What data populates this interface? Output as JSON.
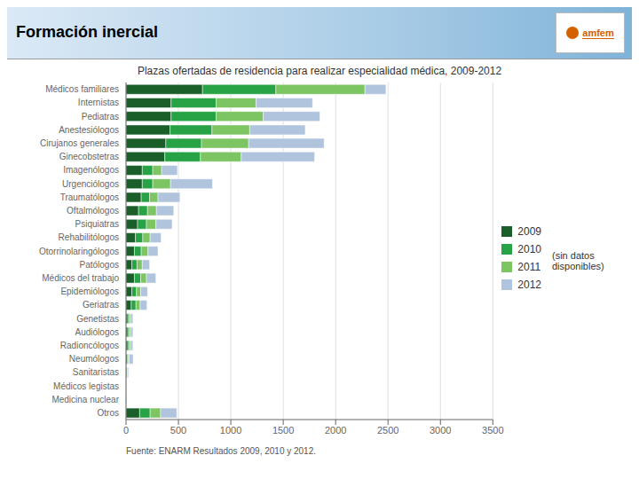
{
  "chart_data": {
    "type": "bar",
    "orientation": "horizontal",
    "stacked": true,
    "grid": true,
    "legend": "right",
    "title": "Plazas ofertadas de residencia para realizar especialidad médica, 2009-2012",
    "header": "Formación inercial",
    "logo": "amfem",
    "footer": "Fuente: ENARM Resultados 2009, 2010 y 2012.",
    "annotations": [
      "(sin datos disponibles)"
    ],
    "categories": [
      "Médicos familiares",
      "Internistas",
      "Pediatras",
      "Anestesiólogos",
      "Cirujanos generales",
      "Ginecobstetras",
      "Imagenólogos",
      "Urgenciólogos",
      "Traumatólogos",
      "Oftalmólogos",
      "Psiquiatras",
      "Rehabilitólogos",
      "Otorrinolaringólogos",
      "Patólogos",
      "Médicos del trabajo",
      "Epidemiólogos",
      "Geriatras",
      "Genetistas",
      "Audiólogos",
      "Radioncólogos",
      "Neumólogos",
      "Sanitaristas",
      "Médicos legistas",
      "Medicina nuclear",
      "Otros"
    ],
    "series": [
      {
        "name": "2009",
        "color": "#1a5e2a",
        "values": [
          730,
          430,
          430,
          420,
          380,
          370,
          155,
          155,
          145,
          120,
          110,
          90,
          80,
          55,
          80,
          55,
          50,
          18,
          18,
          18,
          12,
          8,
          0,
          0,
          130
        ]
      },
      {
        "name": "2010",
        "color": "#27a244",
        "values": [
          700,
          430,
          430,
          400,
          340,
          340,
          100,
          100,
          80,
          85,
          85,
          70,
          65,
          50,
          60,
          45,
          45,
          14,
          14,
          14,
          10,
          6,
          0,
          0,
          100
        ]
      },
      {
        "name": "2011",
        "color": "#7dc462",
        "values": [
          850,
          380,
          450,
          360,
          450,
          390,
          85,
          170,
          80,
          85,
          90,
          70,
          65,
          50,
          55,
          40,
          40,
          12,
          12,
          12,
          8,
          4,
          0,
          0,
          100
        ]
      },
      {
        "name": "2012",
        "color": "#b0c4de",
        "values": [
          200,
          540,
          540,
          530,
          720,
          700,
          150,
          400,
          210,
          165,
          155,
          105,
          95,
          70,
          90,
          65,
          65,
          22,
          22,
          22,
          38,
          8,
          0,
          8,
          155
        ]
      }
    ],
    "xlim": [
      0,
      3500
    ],
    "xticks": [
      0,
      500,
      1000,
      1500,
      2000,
      2500,
      3000,
      3500
    ]
  }
}
